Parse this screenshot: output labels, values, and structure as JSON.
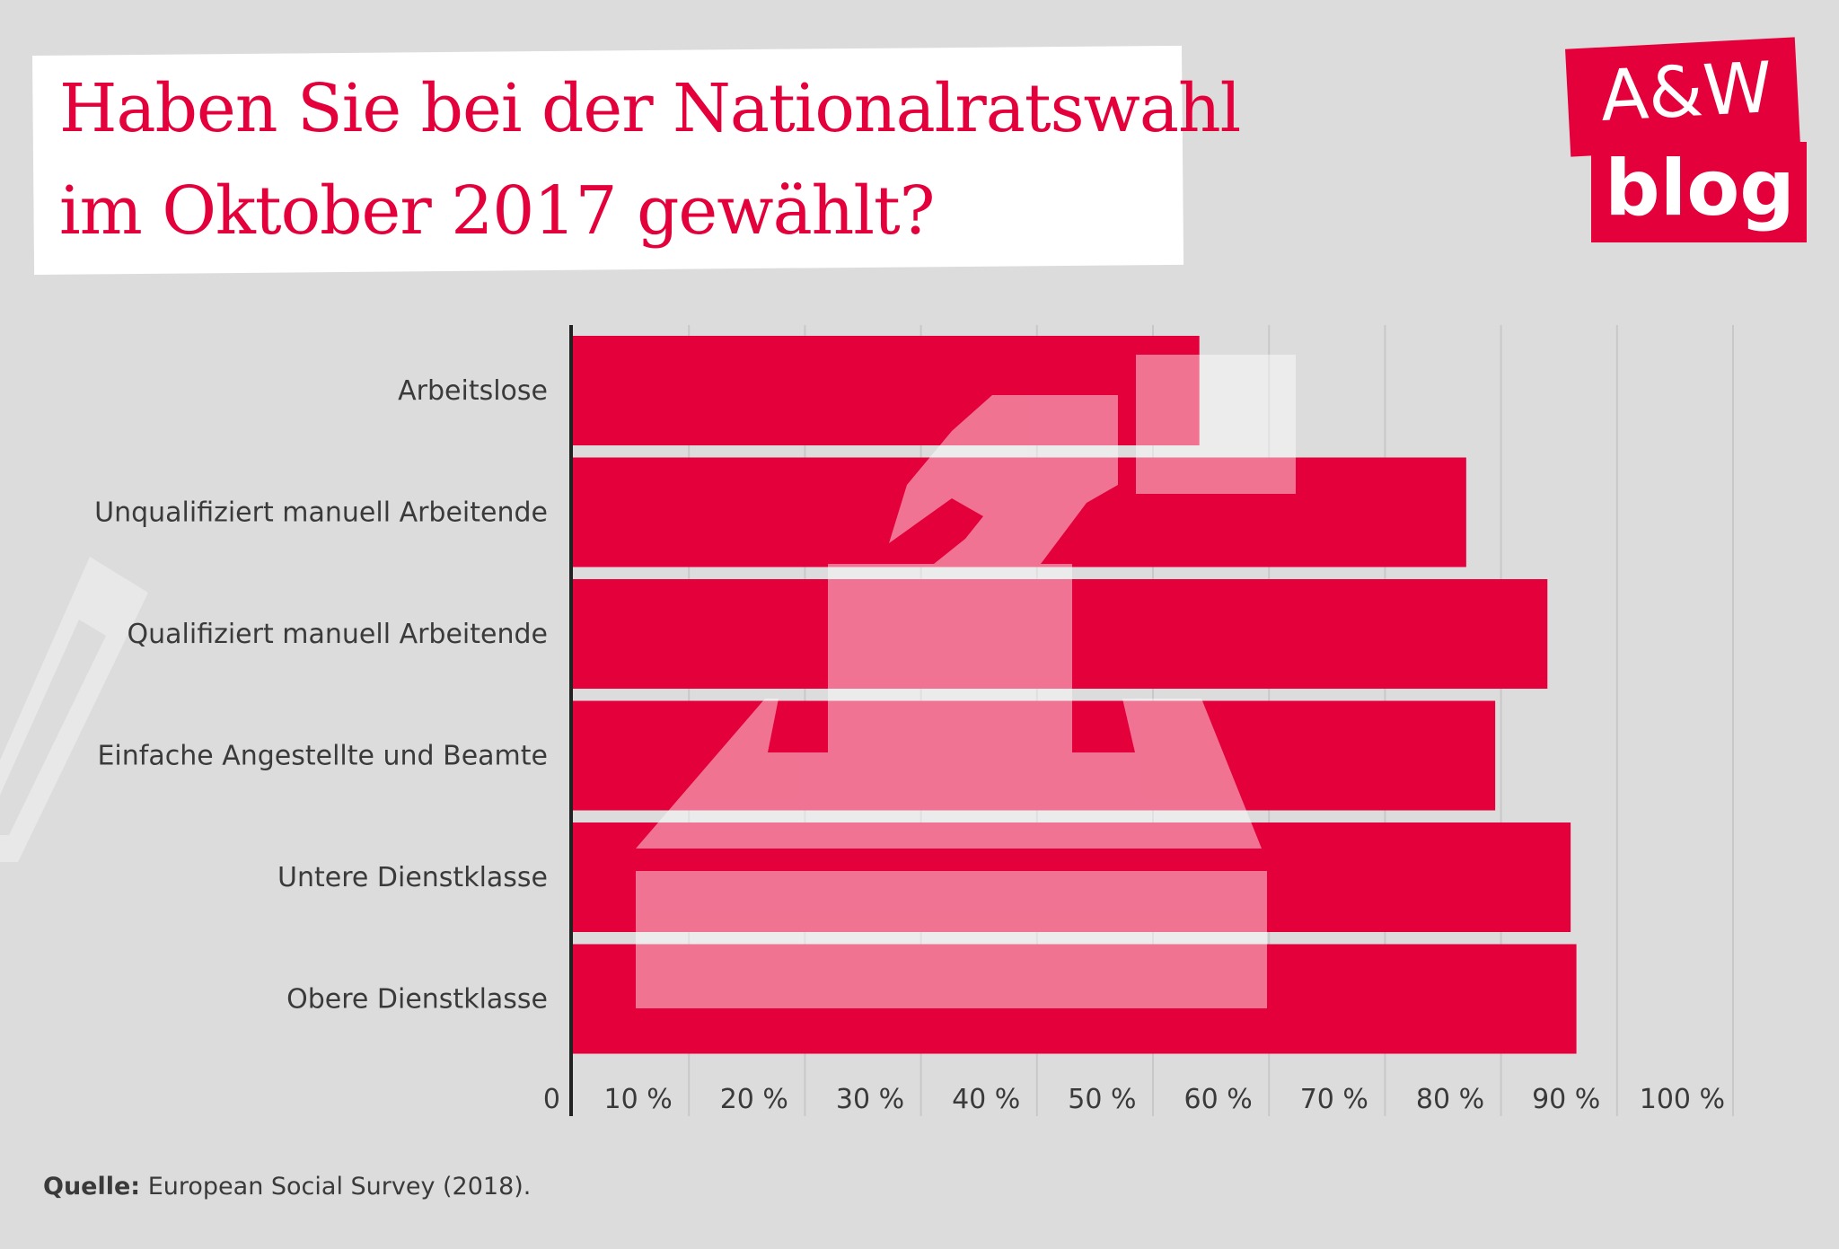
{
  "header": {
    "title_line1": "Haben Sie bei der Nationalratswahl",
    "title_line2": "im Oktober 2017 gewählt?"
  },
  "logo": {
    "line1": "A&W",
    "line2": "blog"
  },
  "source": {
    "label": "Quelle:",
    "text": "European Social Survey (2018)."
  },
  "colors": {
    "bar": "#e4003a",
    "background": "#dcdcdc",
    "grid": "#c8c8c8",
    "title": "#e4003a"
  },
  "chart_data": {
    "type": "bar",
    "orientation": "horizontal",
    "categories": [
      "Arbeitslose",
      "Unqualifiziert manuell Arbeitende",
      "Qualifiziert manuell Arbeitende",
      "Einfache Angestellte und Beamte",
      "Untere Dienstklasse",
      "Obere Dienstklasse"
    ],
    "values": [
      54,
      77,
      84,
      79.5,
      86,
      86.5
    ],
    "xlim": [
      0,
      100
    ],
    "x_ticks": [
      "0",
      "10 %",
      "20 %",
      "30 %",
      "40 %",
      "50 %",
      "60 %",
      "70 %",
      "80 %",
      "90 %",
      "100 %"
    ],
    "grid": true,
    "title": "Haben Sie bei der Nationalratswahl im Oktober 2017 gewählt?",
    "xlabel": "",
    "ylabel": ""
  }
}
